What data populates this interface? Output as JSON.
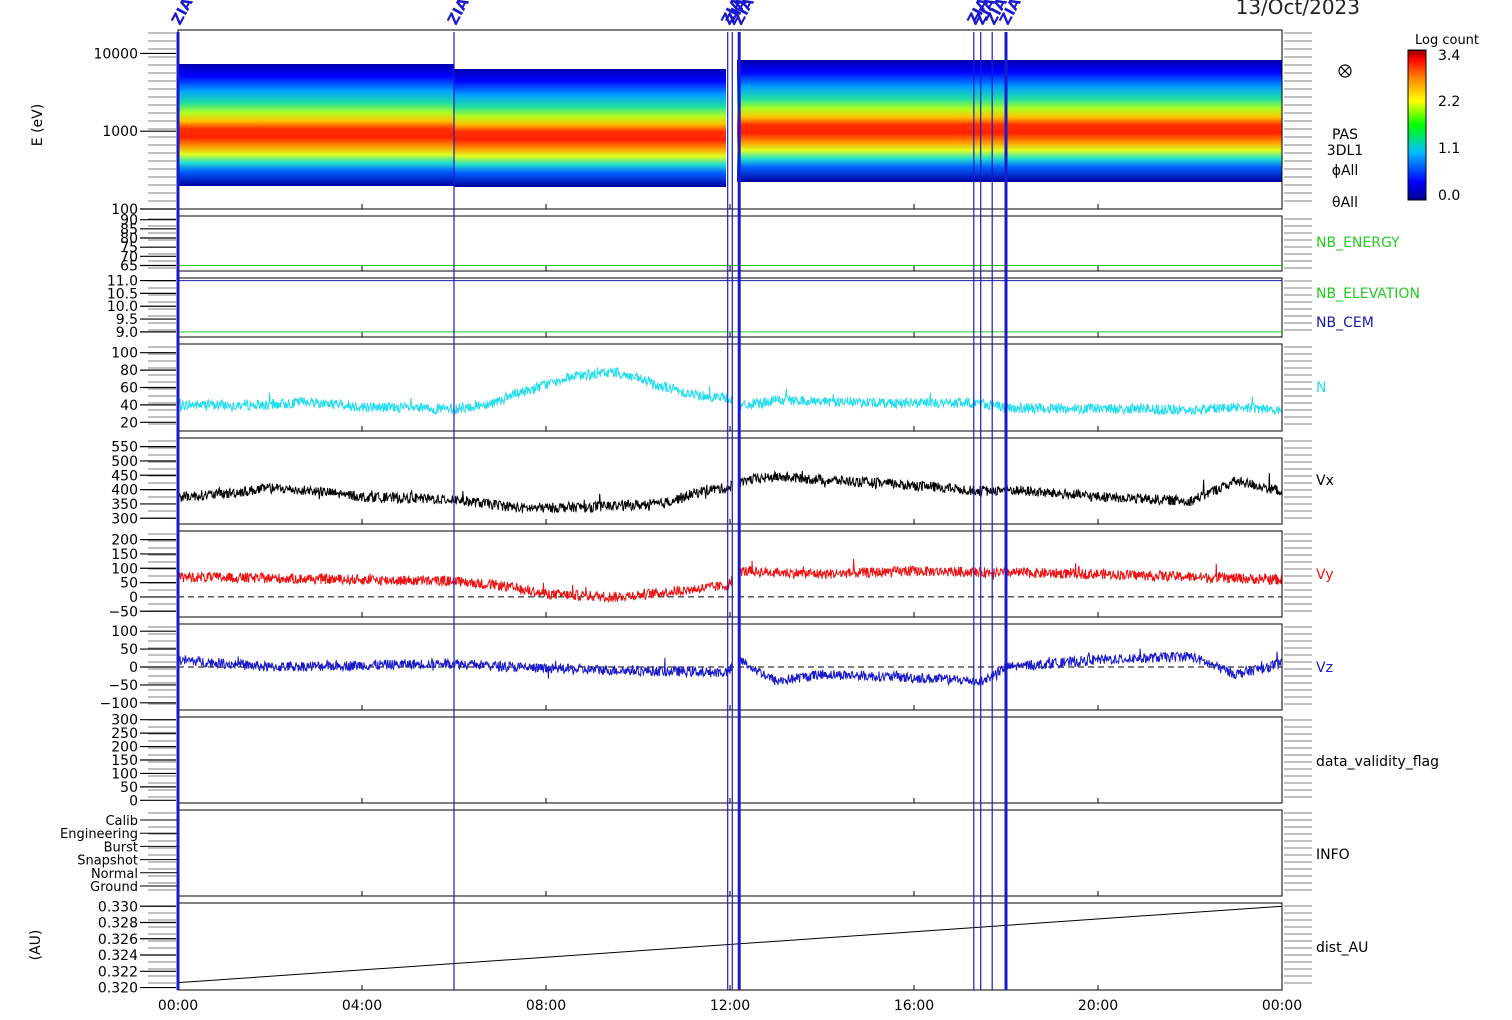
{
  "date_label": "13/Oct/2023",
  "event_label": "ZIAS",
  "x_tick_labels": [
    "00:00",
    "04:00",
    "08:00",
    "12:00",
    "16:00",
    "20:00",
    "00:00"
  ],
  "colorbar": {
    "title": "Log count",
    "tick_labels": [
      "3.4",
      "2.2",
      "1.1",
      "0.0"
    ]
  },
  "chart_data": {
    "type": "line",
    "title": "13/Oct/2023",
    "x_range_hours": [
      0,
      24
    ],
    "x_ticks_hours": [
      0,
      4,
      8,
      12,
      16,
      20,
      24
    ],
    "event_markers_hours": [
      0.0,
      6.0,
      11.95,
      12.05,
      12.2,
      17.3,
      17.45,
      17.7,
      18.0
    ],
    "grid": false,
    "panels": [
      {
        "id": "spectrogram",
        "type": "heatmap",
        "ylabel": "E (eV)",
        "yscale": "log",
        "ylim": [
          100,
          20000
        ],
        "tick_values": [
          100,
          1000,
          10000
        ],
        "tick_labels": [
          "100",
          "1000",
          "10000"
        ],
        "labels": [
          "PAS",
          "3DL1",
          "ϕAll",
          "θAll"
        ],
        "color_range": [
          0.0,
          3.4
        ],
        "peak_energy_ev": 800
      },
      {
        "id": "nb-energy",
        "ylim": [
          62,
          92
        ],
        "tick_values": [
          65,
          70,
          75,
          80,
          85,
          90
        ],
        "tick_labels": [
          "65",
          "70",
          "75",
          "80",
          "85",
          "90"
        ],
        "label": "NB_ENERGY",
        "label_color": "#22cc22",
        "line_value": 65,
        "line_color": "#22cc22"
      },
      {
        "id": "nb-elevation-cem",
        "ylim": [
          8.8,
          11.1
        ],
        "tick_values": [
          9.0,
          9.5,
          10.0,
          10.5,
          11.0
        ],
        "tick_labels": [
          "9.0",
          "9.5",
          "10.0",
          "10.5",
          "11.0"
        ],
        "labels": [
          {
            "text": "NB_ELEVATION",
            "color": "#22cc22"
          },
          {
            "text": "NB_CEM",
            "color": "#1a1aaa"
          }
        ],
        "lines": [
          {
            "value": 9.0,
            "color": "#22cc22"
          },
          {
            "value": 11.0,
            "color": "#1a1aaa"
          }
        ]
      },
      {
        "id": "density",
        "ylim": [
          10,
          110
        ],
        "tick_values": [
          20,
          40,
          60,
          80,
          100
        ],
        "tick_labels": [
          "20",
          "40",
          "60",
          "80",
          "100"
        ],
        "label": "N",
        "color": "#22dded",
        "gaps_hours": [
          [
            12.05,
            12.2
          ]
        ],
        "series_knots": [
          [
            0,
            40
          ],
          [
            2,
            40
          ],
          [
            2.8,
            44
          ],
          [
            4,
            38
          ],
          [
            6,
            35
          ],
          [
            6.8,
            42
          ],
          [
            7.5,
            55
          ],
          [
            8.5,
            72
          ],
          [
            9.5,
            78
          ],
          [
            10.5,
            62
          ],
          [
            11.2,
            52
          ],
          [
            11.95,
            48
          ],
          [
            12.2,
            38
          ],
          [
            13,
            45
          ],
          [
            14,
            44
          ],
          [
            16,
            42
          ],
          [
            17.5,
            42
          ],
          [
            18,
            36
          ],
          [
            20,
            36
          ],
          [
            22,
            34
          ],
          [
            23,
            38
          ],
          [
            24,
            34
          ]
        ]
      },
      {
        "id": "vx",
        "ylim": [
          280,
          580
        ],
        "tick_values": [
          300,
          350,
          400,
          450,
          500,
          550
        ],
        "tick_labels": [
          "300",
          "350",
          "400",
          "450",
          "500",
          "550"
        ],
        "label": "Vx",
        "color": "#000000",
        "gaps_hours": [
          [
            12.05,
            12.2
          ]
        ],
        "series_knots": [
          [
            0,
            375
          ],
          [
            1,
            385
          ],
          [
            2,
            405
          ],
          [
            3,
            395
          ],
          [
            4,
            375
          ],
          [
            6,
            365
          ],
          [
            7.5,
            335
          ],
          [
            9,
            340
          ],
          [
            10.5,
            350
          ],
          [
            11.5,
            400
          ],
          [
            11.95,
            405
          ],
          [
            12.2,
            430
          ],
          [
            13,
            445
          ],
          [
            14,
            435
          ],
          [
            16,
            415
          ],
          [
            17.5,
            395
          ],
          [
            18,
            400
          ],
          [
            20,
            375
          ],
          [
            22,
            360
          ],
          [
            23,
            430
          ],
          [
            24,
            395
          ]
        ]
      },
      {
        "id": "vy",
        "ylim": [
          -70,
          230
        ],
        "tick_values": [
          -50,
          0,
          50,
          100,
          150,
          200
        ],
        "tick_labels": [
          "−50",
          "0",
          "50",
          "100",
          "150",
          "200"
        ],
        "label": "Vy",
        "color": "#ee1111",
        "zero_line": true,
        "gaps_hours": [
          [
            12.05,
            12.2
          ]
        ],
        "series_knots": [
          [
            0,
            70
          ],
          [
            2,
            65
          ],
          [
            4,
            60
          ],
          [
            6,
            55
          ],
          [
            7,
            40
          ],
          [
            8,
            10
          ],
          [
            9.5,
            0
          ],
          [
            10.5,
            15
          ],
          [
            11.95,
            40
          ],
          [
            12.2,
            90
          ],
          [
            14,
            80
          ],
          [
            16,
            90
          ],
          [
            18,
            85
          ],
          [
            20,
            80
          ],
          [
            22,
            70
          ],
          [
            24,
            60
          ]
        ]
      },
      {
        "id": "vz",
        "ylim": [
          -120,
          120
        ],
        "tick_values": [
          -100,
          -50,
          0,
          50,
          100
        ],
        "tick_labels": [
          "−100",
          "−50",
          "0",
          "50",
          "100"
        ],
        "label": "Vz",
        "color": "#1a1acc",
        "zero_line": true,
        "gaps_hours": [
          [
            12.05,
            12.2
          ]
        ],
        "series_knots": [
          [
            0,
            20
          ],
          [
            1,
            10
          ],
          [
            2,
            0
          ],
          [
            4,
            5
          ],
          [
            6,
            10
          ],
          [
            8,
            -5
          ],
          [
            10,
            -10
          ],
          [
            11.95,
            -15
          ],
          [
            12.2,
            20
          ],
          [
            13,
            -40
          ],
          [
            14,
            -20
          ],
          [
            16,
            -30
          ],
          [
            17.5,
            -40
          ],
          [
            18,
            0
          ],
          [
            20,
            20
          ],
          [
            22,
            30
          ],
          [
            23,
            -20
          ],
          [
            24,
            10
          ]
        ]
      },
      {
        "id": "data-validity-flag",
        "ylim": [
          -10,
          310
        ],
        "tick_values": [
          0,
          50,
          100,
          150,
          200,
          250,
          300
        ],
        "tick_labels": [
          "0",
          "50",
          "100",
          "150",
          "200",
          "250",
          "300"
        ],
        "label": "data_validity_flag"
      },
      {
        "id": "info",
        "categories": [
          "Ground",
          "Normal",
          "Snapshot",
          "Burst",
          "Engineering",
          "Calib"
        ],
        "label": "INFO"
      },
      {
        "id": "dist-au",
        "ylabel": "(AU)",
        "ylim": [
          0.3197,
          0.3304
        ],
        "tick_values": [
          0.32,
          0.322,
          0.324,
          0.326,
          0.328,
          0.33
        ],
        "tick_labels": [
          "0.320",
          "0.322",
          "0.324",
          "0.326",
          "0.328",
          "0.330"
        ],
        "label": "dist_AU",
        "series": [
          {
            "x": [
              0,
              24
            ],
            "y": [
              0.3206,
              0.33
            ]
          }
        ]
      }
    ]
  }
}
